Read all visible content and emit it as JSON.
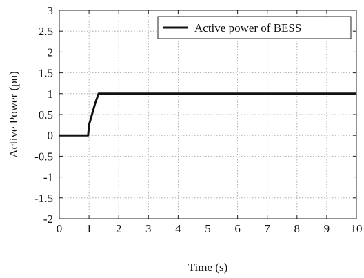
{
  "chart_data": {
    "type": "line",
    "title": "",
    "xlabel": "Time (s)",
    "ylabel": "Active Power (pu)",
    "xlim": [
      0,
      10
    ],
    "ylim": [
      -2,
      3
    ],
    "xticks": [
      0,
      1,
      2,
      3,
      4,
      5,
      6,
      7,
      8,
      9,
      10
    ],
    "yticks": [
      -2,
      -1.5,
      -1,
      -0.5,
      0,
      0.5,
      1,
      1.5,
      2,
      2.5,
      3
    ],
    "xtick_labels": [
      "0",
      "1",
      "2",
      "3",
      "4",
      "5",
      "6",
      "7",
      "8",
      "9",
      "10"
    ],
    "ytick_labels": [
      "-2",
      "-1.5",
      "-1",
      "-0.5",
      "0",
      "0.5",
      "1",
      "1.5",
      "2",
      "2.5",
      "3"
    ],
    "grid": true,
    "legend_position": "top-right",
    "series": [
      {
        "name": "Active power of BESS",
        "color": "#111111",
        "x": [
          0,
          0.97,
          1.0,
          1.1,
          1.2,
          1.32,
          10
        ],
        "y": [
          0,
          0,
          0.25,
          0.5,
          0.75,
          1.0,
          1.0
        ]
      }
    ]
  }
}
